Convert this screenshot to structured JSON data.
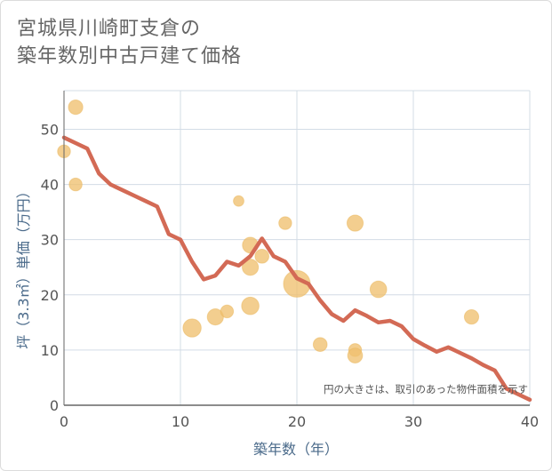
{
  "title_lines": [
    "宮城県川崎町支倉の",
    "築年数別中古戸建て価格"
  ],
  "chart_data": {
    "type": "scatter",
    "title": "宮城県川崎町支倉の 築年数別中古戸建て価格",
    "xlabel": "築年数（年）",
    "ylabel": "坪（3.3㎡）単価（万円）",
    "xlim": [
      0,
      40
    ],
    "ylim": [
      0,
      57
    ],
    "xticks": [
      0,
      10,
      20,
      30,
      40
    ],
    "yticks": [
      0,
      10,
      20,
      30,
      40,
      50
    ],
    "grid": true,
    "annotation": "円の大きさは、取引のあった物件面積を示す",
    "colors": {
      "bubble": "#f0c070",
      "bubble_stroke": "#e9b55a",
      "line": "#d36a55",
      "grid": "#d3dce6",
      "axis_text": "#555555",
      "label_text": "#4a6a8a"
    },
    "bubbles": [
      {
        "x": 0,
        "y": 46,
        "size": 1.2
      },
      {
        "x": 1,
        "y": 54,
        "size": 1.5
      },
      {
        "x": 1,
        "y": 40,
        "size": 1.2
      },
      {
        "x": 11,
        "y": 14,
        "size": 2.4
      },
      {
        "x": 13,
        "y": 16,
        "size": 1.9
      },
      {
        "x": 14,
        "y": 17,
        "size": 1.2
      },
      {
        "x": 15,
        "y": 37,
        "size": 0.8
      },
      {
        "x": 16,
        "y": 29,
        "size": 1.8
      },
      {
        "x": 16,
        "y": 25,
        "size": 1.9
      },
      {
        "x": 16,
        "y": 18,
        "size": 2.2
      },
      {
        "x": 17,
        "y": 27,
        "size": 1.4
      },
      {
        "x": 19,
        "y": 33,
        "size": 1.2
      },
      {
        "x": 20,
        "y": 22,
        "size": 5.2
      },
      {
        "x": 22,
        "y": 11,
        "size": 1.4
      },
      {
        "x": 25,
        "y": 33,
        "size": 1.9
      },
      {
        "x": 25,
        "y": 10,
        "size": 1.2
      },
      {
        "x": 25,
        "y": 9,
        "size": 1.6
      },
      {
        "x": 27,
        "y": 21,
        "size": 2.0
      },
      {
        "x": 35,
        "y": 16,
        "size": 1.5
      }
    ],
    "series": [
      {
        "name": "trend",
        "x": [
          0,
          1,
          2,
          3,
          4,
          5,
          6,
          7,
          8,
          9,
          10,
          11,
          12,
          13,
          14,
          15,
          16,
          17,
          18,
          19,
          20,
          21,
          22,
          23,
          24,
          25,
          26,
          27,
          28,
          29,
          30,
          31,
          32,
          33,
          34,
          35,
          36,
          37,
          38,
          39,
          40
        ],
        "y": [
          48.5,
          47.5,
          46.5,
          42,
          40,
          39,
          38,
          37,
          36,
          31,
          30,
          26,
          22.8,
          23.5,
          26,
          25.3,
          27,
          30.2,
          27,
          26,
          23,
          22,
          19,
          16.5,
          15.3,
          17.2,
          16.2,
          15,
          15.3,
          14.3,
          12,
          10.8,
          9.7,
          10.5,
          9.5,
          8.5,
          7.3,
          6.3,
          3,
          2,
          1
        ]
      }
    ]
  }
}
